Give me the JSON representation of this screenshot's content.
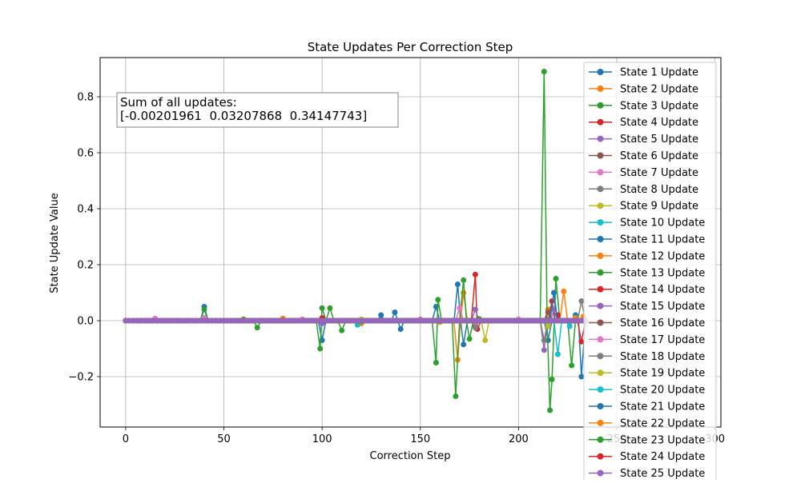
{
  "chart_data": {
    "type": "line",
    "title": "State Updates Per Correction Step",
    "xlabel": "Correction Step",
    "ylabel": "State Update Value",
    "xlim": [
      -13,
      303
    ],
    "ylim": [
      -0.38,
      0.94
    ],
    "xticks": [
      0,
      50,
      100,
      150,
      200,
      250,
      300
    ],
    "xtick_labels": [
      "0",
      "50",
      "100",
      "150",
      "200",
      "250",
      "300"
    ],
    "yticks": [
      -0.2,
      0.0,
      0.2,
      0.4,
      0.6,
      0.8
    ],
    "ytick_labels": [
      "−0.2",
      "0.0",
      "0.2",
      "0.4",
      "0.6",
      "0.8"
    ],
    "grid": true,
    "legend_position": "upper-right",
    "annotation": {
      "line1": "Sum of all updates:",
      "line2": "[-0.00201961  0.03207868  0.34147743]"
    },
    "series": [
      {
        "name": "State 1 Update",
        "color": "#1f77b4",
        "points": [
          [
            0,
            0
          ],
          [
            40,
            0.05
          ],
          [
            100,
            -0.07
          ],
          [
            158,
            0.05
          ],
          [
            169,
            0.13
          ],
          [
            172,
            -0.085
          ],
          [
            215,
            -0.07
          ],
          [
            229,
            0.02
          ],
          [
            232,
            -0.2
          ],
          [
            234,
            0
          ]
        ]
      },
      {
        "name": "State 2 Update",
        "color": "#ff7f0e",
        "points": [
          [
            0,
            0
          ],
          [
            60,
            0.005
          ],
          [
            120,
            -0.01
          ],
          [
            169,
            -0.14
          ],
          [
            172,
            0.1
          ],
          [
            215,
            0.04
          ],
          [
            223,
            0.105
          ],
          [
            229,
            0.01
          ],
          [
            233,
            0
          ]
        ]
      },
      {
        "name": "State 3 Update",
        "color": "#2ca02c",
        "points": [
          [
            0,
            0
          ],
          [
            40,
            0.04
          ],
          [
            67,
            -0.025
          ],
          [
            99,
            -0.1
          ],
          [
            100,
            0.045
          ],
          [
            104,
            0.045
          ],
          [
            110,
            -0.035
          ],
          [
            158,
            -0.15
          ],
          [
            159,
            0.075
          ],
          [
            168,
            -0.27
          ],
          [
            172,
            0.145
          ],
          [
            175,
            -0.065
          ],
          [
            213,
            0.89
          ],
          [
            216,
            -0.32
          ],
          [
            217,
            -0.21
          ],
          [
            219,
            0.15
          ],
          [
            227,
            -0.16
          ],
          [
            233,
            0
          ]
        ]
      },
      {
        "name": "State 4 Update",
        "color": "#d62728",
        "points": [
          [
            0,
            0
          ],
          [
            100,
            0.01
          ],
          [
            178,
            0.165
          ],
          [
            179,
            -0.03
          ],
          [
            217,
            0.07
          ],
          [
            220,
            0.02
          ],
          [
            232,
            -0.075
          ],
          [
            234,
            0
          ]
        ]
      },
      {
        "name": "State 5 Update",
        "color": "#9467bd",
        "points": [
          [
            0,
            0
          ],
          [
            100,
            -0.01
          ],
          [
            178,
            0.04
          ],
          [
            213,
            -0.105
          ],
          [
            218,
            0.04
          ],
          [
            233,
            0
          ]
        ]
      },
      {
        "name": "State 6 Update",
        "color": "#8c564b",
        "points": [
          [
            0,
            0
          ],
          [
            150,
            0.005
          ],
          [
            178,
            -0.02
          ],
          [
            215,
            0.03
          ],
          [
            233,
            0.01
          ]
        ]
      },
      {
        "name": "State 7 Update",
        "color": "#e377c2",
        "points": [
          [
            0,
            0
          ],
          [
            15,
            0.008
          ],
          [
            40,
            0.01
          ],
          [
            90,
            0.005
          ],
          [
            150,
            0.005
          ],
          [
            170,
            0.045
          ],
          [
            178,
            -0.01
          ],
          [
            200,
            0.005
          ],
          [
            233,
            0
          ]
        ]
      },
      {
        "name": "State 8 Update",
        "color": "#7f7f7f",
        "points": [
          [
            0,
            0
          ],
          [
            100,
            0
          ],
          [
            178,
            -0.025
          ],
          [
            213,
            -0.07
          ],
          [
            232,
            0.07
          ],
          [
            234,
            0
          ]
        ]
      },
      {
        "name": "State 9 Update",
        "color": "#bcbd22",
        "points": [
          [
            0,
            0
          ],
          [
            120,
            0.005
          ],
          [
            183,
            -0.07
          ],
          [
            215,
            -0.02
          ],
          [
            233,
            0
          ]
        ]
      },
      {
        "name": "State 10 Update",
        "color": "#17becf",
        "points": [
          [
            0,
            0
          ],
          [
            118,
            -0.015
          ],
          [
            220,
            -0.12
          ],
          [
            226,
            -0.02
          ],
          [
            233,
            0
          ]
        ]
      },
      {
        "name": "State 11 Update",
        "color": "#1f77b4",
        "points": [
          [
            0,
            0
          ],
          [
            130,
            0.02
          ],
          [
            137,
            0.03
          ],
          [
            140,
            -0.03
          ],
          [
            218,
            0.1
          ],
          [
            233,
            0
          ]
        ]
      },
      {
        "name": "State 12 Update",
        "color": "#ff7f0e",
        "points": [
          [
            0,
            0
          ],
          [
            80,
            0.008
          ],
          [
            160,
            -0.005
          ],
          [
            233,
            0.015
          ]
        ]
      },
      {
        "name": "State 13 Update",
        "color": "#2ca02c",
        "points": [
          [
            0,
            0
          ],
          [
            60,
            0.004
          ],
          [
            120,
            -0.003
          ],
          [
            180,
            0.006
          ],
          [
            233,
            0
          ]
        ]
      },
      {
        "name": "State 14 Update",
        "color": "#d62728",
        "points": [
          [
            0,
            0
          ],
          [
            233,
            0
          ]
        ]
      },
      {
        "name": "State 15 Update",
        "color": "#9467bd",
        "points": [
          [
            0,
            0
          ],
          [
            233,
            0
          ]
        ]
      },
      {
        "name": "State 16 Update",
        "color": "#8c564b",
        "points": [
          [
            0,
            0
          ],
          [
            233,
            0
          ]
        ]
      },
      {
        "name": "State 17 Update",
        "color": "#e377c2",
        "points": [
          [
            0,
            0
          ],
          [
            233,
            0
          ]
        ]
      },
      {
        "name": "State 18 Update",
        "color": "#7f7f7f",
        "points": [
          [
            0,
            0
          ],
          [
            233,
            0
          ]
        ]
      },
      {
        "name": "State 19 Update",
        "color": "#bcbd22",
        "points": [
          [
            0,
            0
          ],
          [
            233,
            0
          ]
        ]
      },
      {
        "name": "State 20 Update",
        "color": "#17becf",
        "points": [
          [
            0,
            0
          ],
          [
            233,
            0
          ]
        ]
      },
      {
        "name": "State 21 Update",
        "color": "#1f77b4",
        "points": [
          [
            0,
            0
          ],
          [
            233,
            0
          ]
        ]
      },
      {
        "name": "State 22 Update",
        "color": "#ff7f0e",
        "points": [
          [
            0,
            0
          ],
          [
            233,
            0
          ]
        ]
      },
      {
        "name": "State 23 Update",
        "color": "#2ca02c",
        "points": [
          [
            0,
            0
          ],
          [
            233,
            0
          ]
        ]
      },
      {
        "name": "State 24 Update",
        "color": "#d62728",
        "points": [
          [
            0,
            0
          ],
          [
            233,
            0
          ]
        ]
      },
      {
        "name": "State 25 Update",
        "color": "#9467bd",
        "points": [
          [
            0,
            0
          ],
          [
            233,
            0
          ]
        ]
      }
    ]
  }
}
